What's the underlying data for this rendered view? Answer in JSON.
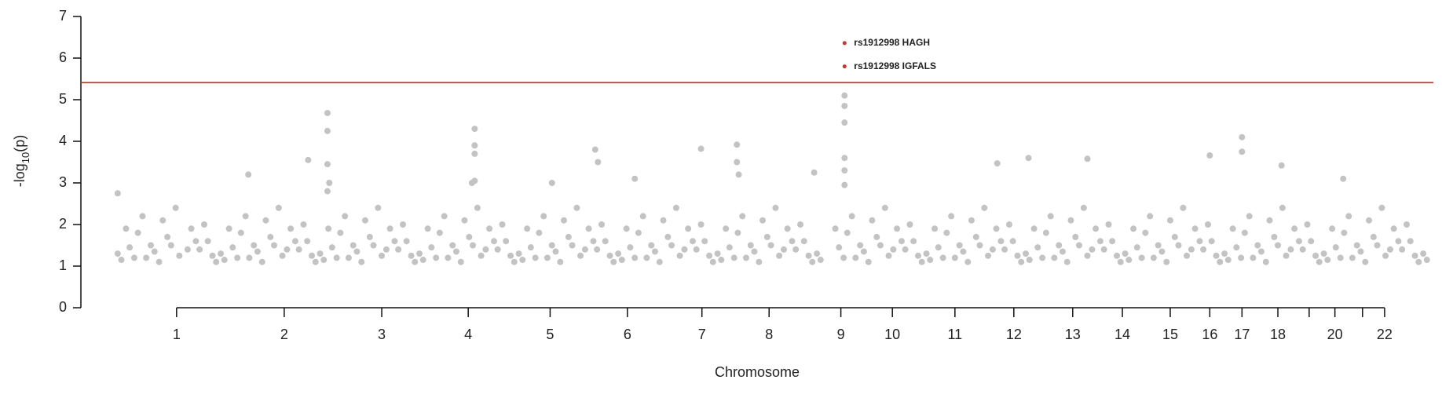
{
  "chart_data": {
    "type": "scatter",
    "x_label": "Chromosome",
    "y_label": {
      "prefix": "-log",
      "sub": "10",
      "suffix": "(p)"
    },
    "xlim": [
      0,
      1470
    ],
    "ylim": [
      0,
      7
    ],
    "yticks": [
      0,
      1,
      2,
      3,
      4,
      5,
      6,
      7
    ],
    "xticks": [
      {
        "value": 104,
        "label": "1"
      },
      {
        "value": 221,
        "label": "2"
      },
      {
        "value": 327,
        "label": "3"
      },
      {
        "value": 421,
        "label": "4"
      },
      {
        "value": 510,
        "label": "5"
      },
      {
        "value": 594,
        "label": "6"
      },
      {
        "value": 675,
        "label": "7"
      },
      {
        "value": 748,
        "label": "8"
      },
      {
        "value": 826,
        "label": "9"
      },
      {
        "value": 882,
        "label": "10"
      },
      {
        "value": 950,
        "label": "11"
      },
      {
        "value": 1014,
        "label": "12"
      },
      {
        "value": 1078,
        "label": "13"
      },
      {
        "value": 1132,
        "label": "14"
      },
      {
        "value": 1184,
        "label": "15"
      },
      {
        "value": 1227,
        "label": "16"
      },
      {
        "value": 1262,
        "label": "17"
      },
      {
        "value": 1301,
        "label": "18"
      },
      {
        "value": 1335,
        "label": null
      },
      {
        "value": 1363,
        "label": "20"
      },
      {
        "value": 1393,
        "label": null
      },
      {
        "value": 1417,
        "label": "22"
      }
    ],
    "threshold": {
      "value": 5.41,
      "color": "#c0392b"
    },
    "series": [
      {
        "color": "#c3c3c3",
        "x": [
          40,
          49,
          58,
          67,
          76,
          85,
          94,
          103,
          116,
          125,
          134,
          143,
          152,
          161,
          170,
          179,
          188,
          197,
          206,
          215,
          224,
          233,
          242,
          251,
          260,
          269,
          278,
          287,
          296,
          305,
          314,
          323,
          332,
          341,
          350,
          359,
          368,
          377,
          386,
          395,
          404,
          413,
          422,
          431,
          440,
          449,
          458,
          467,
          476,
          485,
          494,
          503,
          512,
          521,
          530,
          539,
          548,
          557,
          566,
          575,
          584,
          593,
          602,
          611,
          620,
          629,
          638,
          647,
          656,
          665,
          674,
          683,
          692,
          701,
          710,
          719,
          728,
          737,
          746,
          755,
          764,
          773,
          782,
          791,
          800,
          820,
          829,
          838,
          847,
          856,
          865,
          874,
          883,
          892,
          901,
          910,
          919,
          928,
          937,
          946,
          955,
          964,
          973,
          982,
          991,
          1000,
          1009,
          1018,
          1027,
          1036,
          1045,
          1054,
          1063,
          1072,
          1081,
          1090,
          1099,
          1108,
          1117,
          1126,
          1135,
          1144,
          1153,
          1162,
          1171,
          1180,
          1189,
          1198,
          1207,
          1216,
          1225,
          1234,
          1243,
          1252,
          1261,
          1270,
          1279,
          1288,
          1297,
          1306,
          1315,
          1324,
          1333,
          1342,
          1351,
          1360,
          1369,
          1378,
          1387,
          1396,
          1405,
          1414,
          1423,
          1432,
          1441,
          1450,
          1459
        ],
        "values": [
          1.3,
          1.9,
          1.2,
          2.2,
          1.5,
          1.1,
          1.7,
          2.4,
          1.4,
          1.6,
          2.0,
          1.25,
          1.3,
          1.9,
          1.2,
          2.2,
          1.5,
          1.1,
          1.7,
          2.4,
          1.4,
          1.6,
          2.0,
          1.25,
          1.3,
          1.9,
          1.2,
          2.2,
          1.5,
          1.1,
          1.7,
          2.4,
          1.4,
          1.6,
          2.0,
          1.25,
          1.3,
          1.9,
          1.2,
          2.2,
          1.5,
          1.1,
          1.7,
          2.4,
          1.4,
          1.6,
          2.0,
          1.25,
          1.3,
          1.9,
          1.2,
          2.2,
          1.5,
          1.1,
          1.7,
          2.4,
          1.4,
          1.6,
          2.0,
          1.25,
          1.3,
          1.9,
          1.2,
          2.2,
          1.5,
          1.1,
          1.7,
          2.4,
          1.4,
          1.6,
          2.0,
          1.25,
          1.3,
          1.9,
          1.2,
          2.2,
          1.5,
          1.1,
          1.7,
          2.4,
          1.4,
          1.6,
          2.0,
          1.25,
          1.3,
          1.9,
          1.2,
          2.2,
          1.5,
          1.1,
          1.7,
          2.4,
          1.4,
          1.6,
          2.0,
          1.25,
          1.3,
          1.9,
          1.2,
          2.2,
          1.5,
          1.1,
          1.7,
          2.4,
          1.4,
          1.6,
          2.0,
          1.25,
          1.3,
          1.9,
          1.2,
          2.2,
          1.5,
          1.1,
          1.7,
          2.4,
          1.4,
          1.6,
          2.0,
          1.25,
          1.3,
          1.9,
          1.2,
          2.2,
          1.5,
          1.1,
          1.7,
          2.4,
          1.4,
          1.6,
          2.0,
          1.25,
          1.3,
          1.9,
          1.2,
          2.2,
          1.5,
          1.1,
          1.7,
          2.4,
          1.4,
          1.6,
          2.0,
          1.25,
          1.3,
          1.9,
          1.2,
          2.2,
          1.5,
          1.1,
          1.7,
          2.4,
          1.4,
          1.6,
          2.0,
          1.25,
          1.3
        ]
      },
      {
        "color": "#c3c3c3",
        "x": [
          44,
          53,
          62,
          71,
          80,
          89,
          98,
          107,
          120,
          129,
          138,
          147,
          156,
          165,
          174,
          183,
          192,
          201,
          210,
          219,
          228,
          237,
          246,
          255,
          264,
          273,
          282,
          291,
          300,
          309,
          318,
          327,
          336,
          345,
          354,
          363,
          372,
          381,
          390,
          399,
          408,
          417,
          426,
          435,
          444,
          453,
          462,
          471,
          480,
          489,
          498,
          507,
          516,
          525,
          534,
          543,
          552,
          561,
          570,
          579,
          588,
          597,
          606,
          615,
          624,
          633,
          642,
          651,
          660,
          669,
          678,
          687,
          696,
          705,
          714,
          723,
          732,
          741,
          750,
          759,
          768,
          777,
          786,
          795,
          804,
          824,
          833,
          842,
          851,
          860,
          869,
          878,
          887,
          896,
          905,
          914,
          923,
          932,
          941,
          950,
          959,
          968,
          977,
          986,
          995,
          1004,
          1013,
          1022,
          1031,
          1040,
          1049,
          1058,
          1067,
          1076,
          1085,
          1094,
          1103,
          1112,
          1121,
          1130,
          1139,
          1148,
          1157,
          1166,
          1175,
          1184,
          1193,
          1202,
          1211,
          1220,
          1229,
          1238,
          1247,
          1256,
          1265,
          1274,
          1283,
          1292,
          1301,
          1310,
          1319,
          1328,
          1337,
          1346,
          1355,
          1364,
          1373,
          1382,
          1391,
          1400,
          1409,
          1418,
          1427,
          1436,
          1445,
          1454,
          1463
        ],
        "values": [
          1.15,
          1.45,
          1.8,
          1.2,
          1.35,
          2.1,
          1.5,
          1.25,
          1.9,
          1.4,
          1.6,
          1.1,
          1.15,
          1.45,
          1.8,
          1.2,
          1.35,
          2.1,
          1.5,
          1.25,
          1.9,
          1.4,
          1.6,
          1.1,
          1.15,
          1.45,
          1.8,
          1.2,
          1.35,
          2.1,
          1.5,
          1.25,
          1.9,
          1.4,
          1.6,
          1.1,
          1.15,
          1.45,
          1.8,
          1.2,
          1.35,
          2.1,
          1.5,
          1.25,
          1.9,
          1.4,
          1.6,
          1.1,
          1.15,
          1.45,
          1.8,
          1.2,
          1.35,
          2.1,
          1.5,
          1.25,
          1.9,
          1.4,
          1.6,
          1.1,
          1.15,
          1.45,
          1.8,
          1.2,
          1.35,
          2.1,
          1.5,
          1.25,
          1.9,
          1.4,
          1.6,
          1.1,
          1.15,
          1.45,
          1.8,
          1.2,
          1.35,
          2.1,
          1.5,
          1.25,
          1.9,
          1.4,
          1.6,
          1.1,
          1.15,
          1.45,
          1.8,
          1.2,
          1.35,
          2.1,
          1.5,
          1.25,
          1.9,
          1.4,
          1.6,
          1.1,
          1.15,
          1.45,
          1.8,
          1.2,
          1.35,
          2.1,
          1.5,
          1.25,
          1.9,
          1.4,
          1.6,
          1.1,
          1.15,
          1.45,
          1.8,
          1.2,
          1.35,
          2.1,
          1.5,
          1.25,
          1.9,
          1.4,
          1.6,
          1.1,
          1.15,
          1.45,
          1.8,
          1.2,
          1.35,
          2.1,
          1.5,
          1.25,
          1.9,
          1.4,
          1.6,
          1.1,
          1.15,
          1.45,
          1.8,
          1.2,
          1.35,
          2.1,
          1.5,
          1.25,
          1.9,
          1.4,
          1.6,
          1.1,
          1.15,
          1.45,
          1.8,
          1.2,
          1.35,
          2.1,
          1.5,
          1.25,
          1.9,
          1.4,
          1.6,
          1.1,
          1.15
        ]
      },
      {
        "color": "#c3c3c3",
        "x": [
          268,
          268,
          268,
          270,
          268,
          428,
          428,
          428,
          428,
          425,
          182,
          247,
          559,
          562,
          674,
          713,
          713,
          715,
          830,
          830,
          830,
          830,
          830,
          830,
          996,
          1030,
          1094,
          1227,
          1262,
          1262,
          1305,
          1372,
          797,
          512,
          602,
          40
        ],
        "values": [
          4.68,
          4.25,
          3.45,
          3.0,
          2.8,
          4.3,
          3.9,
          3.7,
          3.05,
          3.0,
          3.2,
          3.55,
          3.8,
          3.5,
          3.82,
          3.92,
          3.5,
          3.2,
          5.1,
          4.85,
          4.45,
          3.6,
          3.3,
          2.95,
          3.47,
          3.6,
          3.58,
          3.66,
          4.1,
          3.75,
          3.42,
          3.1,
          3.25,
          3.0,
          3.1,
          2.75
        ]
      }
    ],
    "highlights": [
      {
        "x": 830,
        "y": 6.36,
        "label": "rs1912998 HAGH",
        "color": "#c0392b"
      },
      {
        "x": 830,
        "y": 5.8,
        "label": "rs1912998 IGFALS",
        "color": "#c0392b"
      }
    ]
  }
}
